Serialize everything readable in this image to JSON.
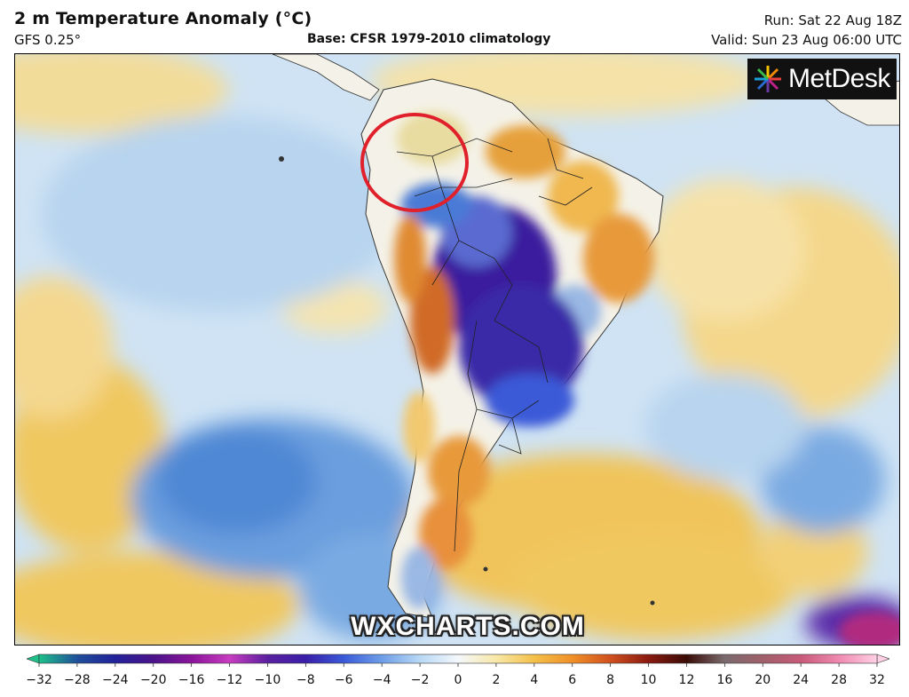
{
  "header": {
    "title": "2 m Temperature Anomaly (°C)",
    "model": "GFS 0.25°",
    "base": "Base: CFSR 1979-2010 climatology",
    "run": "Run: Sat 22 Aug 18Z",
    "valid": "Valid: Sun 23 Aug 06:00 UTC"
  },
  "logo": {
    "text": "MetDesk",
    "icon": "metdesk-starburst-icon"
  },
  "watermark": "WXCHARTS.COM",
  "annotation": {
    "shape": "circle",
    "color": "#e0202a",
    "target": "southern Colombia / northern Peru"
  },
  "legend": {
    "ticks": [
      "−32",
      "−28",
      "−24",
      "−20",
      "−16",
      "−12",
      "−10",
      "−8",
      "−6",
      "−4",
      "−2",
      "0",
      "2",
      "4",
      "6",
      "8",
      "10",
      "12",
      "16",
      "20",
      "24",
      "28",
      "32"
    ],
    "colors": [
      "#1fc08a",
      "#1f4f9a",
      "#22229a",
      "#4a138a",
      "#8a149a",
      "#c83cc0",
      "#5a20a0",
      "#3a1ea8",
      "#3a5ad8",
      "#6e9ee8",
      "#b8d8f4",
      "#f4f8fc",
      "#f8e8a8",
      "#f4c04a",
      "#f09028",
      "#d0501e",
      "#8a1a10",
      "#3a0c06",
      "#7a6a6e",
      "#a0606a",
      "#c85a7a",
      "#f08ab0",
      "#ffd0e4"
    ],
    "extends": "both"
  }
}
